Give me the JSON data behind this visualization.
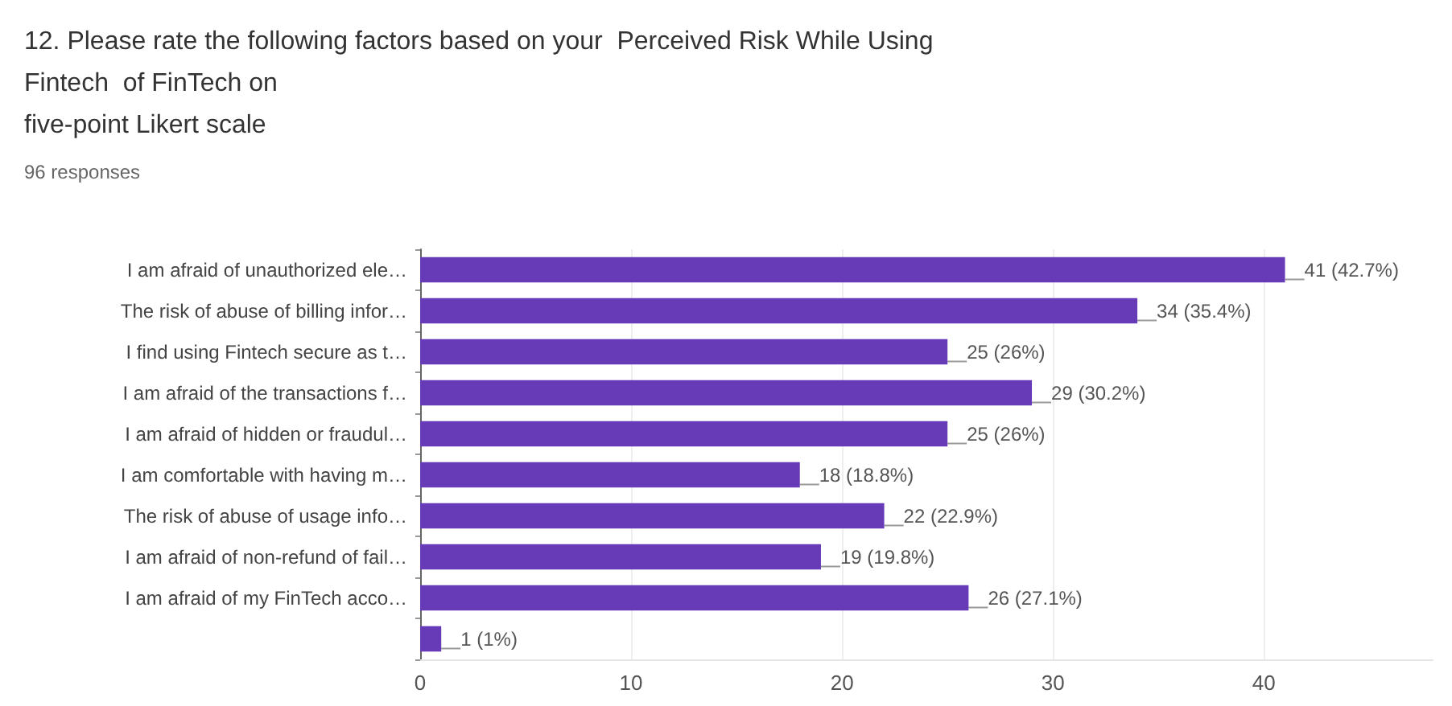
{
  "chart_data": {
    "type": "bar",
    "orientation": "horizontal",
    "title": "12. Please rate the following factors based on your  Perceived Risk While Using\nFintech  of FinTech on\nfive-point Likert scale",
    "subtitle": "96 responses",
    "categories": [
      "I am afraid of unauthorized ele…",
      "The risk of abuse of billing infor…",
      "I find using Fintech secure as t…",
      "I am afraid of the transactions f…",
      "I am afraid of hidden or fraudul…",
      "I am comfortable with having m…",
      "The risk of abuse of usage info…",
      "I am afraid of non-refund of fail…",
      "I am afraid of my FinTech acco…",
      null
    ],
    "values": [
      41,
      34,
      25,
      29,
      25,
      18,
      22,
      19,
      26,
      1
    ],
    "value_labels": [
      "41 (42.7%)",
      "34 (35.4%)",
      "25 (26%)",
      "29 (30.2%)",
      "25 (26%)",
      "18 (18.8%)",
      "22 (22.9%)",
      "19 (19.8%)",
      "26 (27.1%)",
      "1 (1%)"
    ],
    "color": "#673ab7",
    "xlim": [
      0,
      48
    ],
    "xticks": [
      0,
      10,
      20,
      30,
      40
    ],
    "grid": "x"
  }
}
